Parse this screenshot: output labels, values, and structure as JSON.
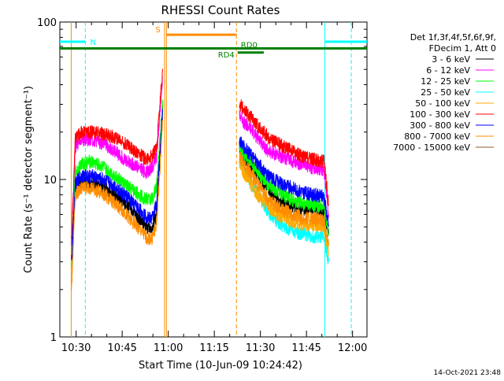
{
  "chart_data": {
    "type": "line",
    "title": "RHESSI Count Rates",
    "xlabel": "Start Time (10-Jun-09 10:24:42)",
    "ylabel": "Count Rate (s⁻¹ detector segment⁻¹)",
    "yscale": "log",
    "ylim": [
      1,
      100
    ],
    "xlim_minutes_since_1024": [
      0,
      100
    ],
    "x_ticks": [
      {
        "label": "10:30",
        "min": 5.3
      },
      {
        "label": "10:45",
        "min": 20.3
      },
      {
        "label": "11:00",
        "min": 35.3
      },
      {
        "label": "11:15",
        "min": 50.3
      },
      {
        "label": "11:30",
        "min": 65.3
      },
      {
        "label": "11:45",
        "min": 80.3
      },
      {
        "label": "12:00",
        "min": 95.3
      }
    ],
    "y_ticks": [
      {
        "label": "1",
        "value": 1
      },
      {
        "label": "10",
        "value": 10
      },
      {
        "label": "100",
        "value": 100
      }
    ],
    "header_lines": [
      "Det 1f,3f,4f,5f,6f,9f,",
      "FDecim 1, Att 0"
    ],
    "grid": false,
    "legend_position": "right",
    "series": [
      {
        "name": "3 - 6 keV",
        "color": "#000000",
        "segments": [
          {
            "x": [
              3.8,
              5,
              7,
              10,
              14,
              18,
              22,
              26,
              28,
              30,
              31.5,
              33.5
            ],
            "y": [
              3.0,
              9.0,
              9.5,
              9.5,
              9.0,
              8.0,
              6.8,
              5.5,
              5.0,
              5.0,
              6.0,
              30
            ]
          },
          {
            "x": [
              58.5,
              60,
              64,
              68,
              72,
              76,
              79,
              82,
              86,
              87.5
            ],
            "y": [
              16,
              14,
              11,
              8.5,
              7.2,
              6.8,
              6.5,
              6.6,
              6.2,
              4.5
            ]
          }
        ]
      },
      {
        "name": "6 - 12 keV",
        "color": "#ff00ff",
        "segments": [
          {
            "x": [
              3.8,
              5,
              7,
              10,
              14,
              18,
              22,
              26,
              28,
              30,
              31.5,
              33.5
            ],
            "y": [
              4.0,
              16,
              18,
              18,
              17,
              15,
              13,
              12,
              11,
              12,
              14,
              45
            ]
          },
          {
            "x": [
              58.5,
              60,
              64,
              68,
              72,
              76,
              79,
              82,
              86,
              87.5
            ],
            "y": [
              26,
              23,
              19,
              15,
              14,
              13,
              12.5,
              12,
              11.5,
              6.0
            ]
          }
        ]
      },
      {
        "name": "12 - 25 keV",
        "color": "#00ff00",
        "segments": [
          {
            "x": [
              3.8,
              5,
              7,
              10,
              14,
              18,
              22,
              26,
              28,
              30,
              31.5,
              33.5
            ],
            "y": [
              3.0,
              11,
              12.5,
              13,
              12,
              10.5,
              9,
              8,
              7.5,
              7.5,
              9,
              32
            ]
          },
          {
            "x": [
              58.5,
              60,
              64,
              68,
              72,
              76,
              79,
              82,
              86,
              87.5
            ],
            "y": [
              16,
              14.5,
              11.5,
              9.2,
              8.2,
              7.3,
              7,
              7,
              6.7,
              4.5
            ]
          }
        ]
      },
      {
        "name": "25 - 50 keV",
        "color": "#00ffff",
        "segments": [
          {
            "x": [
              58.5,
              60,
              64,
              68,
              72,
              76,
              79,
              82,
              86,
              87.5
            ],
            "y": [
              13,
              11.5,
              8.3,
              6.2,
              5.1,
              4.7,
              4.5,
              4.4,
              4.2,
              3.0
            ]
          }
        ]
      },
      {
        "name": "50 - 100 keV",
        "color": "#ffaa00",
        "segments": [
          {
            "x": [
              58.5,
              60,
              64,
              68,
              72,
              76,
              79,
              82,
              86,
              87.5
            ],
            "y": [
              12.5,
              11,
              8.2,
              6.6,
              5.8,
              5.4,
              5.2,
              5.2,
              5.0,
              3.5
            ]
          }
        ]
      },
      {
        "name": "100 - 300 keV",
        "color": "#ff0000",
        "segments": [
          {
            "x": [
              3.8,
              5,
              7,
              10,
              14,
              18,
              22,
              26,
              28,
              30,
              31.5,
              33.5
            ],
            "y": [
              4.0,
              18,
              20,
              20,
              19.5,
              18.5,
              16.5,
              14.5,
              13.5,
              14,
              16,
              50
            ]
          },
          {
            "x": [
              58.5,
              60,
              64,
              68,
              72,
              76,
              79,
              82,
              86,
              87.5
            ],
            "y": [
              30,
              28,
              22.5,
              18.5,
              16.5,
              15,
              14,
              13.5,
              13,
              7.0
            ]
          }
        ]
      },
      {
        "name": "300 - 800 keV",
        "color": "#0000ff",
        "segments": [
          {
            "x": [
              3.8,
              5,
              7,
              10,
              14,
              18,
              22,
              26,
              28,
              30,
              31.5,
              33.5
            ],
            "y": [
              3.0,
              9.5,
              10.5,
              10.5,
              10,
              9,
              7.7,
              6.4,
              5.8,
              5.6,
              7,
              28
            ]
          },
          {
            "x": [
              58.5,
              60,
              64,
              68,
              72,
              76,
              79,
              82,
              86,
              87.5
            ],
            "y": [
              18,
              16,
              13,
              10.5,
              9.4,
              8.8,
              8.3,
              8,
              7.8,
              5.0
            ]
          }
        ]
      },
      {
        "name": "800 - 7000 keV",
        "color": "#ff8c00",
        "segments": [
          {
            "x": [
              3.8,
              5,
              7,
              10,
              14,
              18,
              22,
              26,
              28,
              30,
              31.5,
              33.5
            ],
            "y": [
              2.0,
              8,
              8.8,
              8.8,
              8.2,
              7,
              5.9,
              4.8,
              4.3,
              4.2,
              5.2,
              24
            ]
          },
          {
            "x": [
              58.5,
              60,
              64,
              68,
              72,
              76,
              79,
              82,
              86,
              87.5
            ],
            "y": [
              14,
              12.5,
              9.6,
              7.4,
              6.5,
              6,
              5.7,
              5.6,
              5.5,
              3.8
            ]
          }
        ]
      },
      {
        "name": "7000 - 15000 keV",
        "color": "#8b5a2b",
        "segments": []
      }
    ],
    "vertical_markers": [
      {
        "min": 3.7,
        "color": "#ff8c00",
        "style": "solid"
      },
      {
        "min": 8.3,
        "color": "#00ffff",
        "style": "dashed"
      },
      {
        "min": 34.1,
        "color": "#ff8c00",
        "style": "solid"
      },
      {
        "min": 34.7,
        "color": "#ff8c00",
        "style": "solid"
      },
      {
        "min": 57.5,
        "color": "#ff8c00",
        "style": "dashed"
      },
      {
        "min": 86.3,
        "color": "#00ffff",
        "style": "solid"
      },
      {
        "min": 94.9,
        "color": "#00ffff",
        "style": "dashed"
      }
    ],
    "flag_bars": [
      {
        "label": "N",
        "color": "#00ffff",
        "x_start_min": 0,
        "x_end_min": 8.3,
        "y": 75
      },
      {
        "label": "",
        "color": "#00ffff",
        "x_start_min": 86.3,
        "x_end_min": 100,
        "y": 75
      },
      {
        "label": "S",
        "color": "#ff8c00",
        "x_start_min": 34.7,
        "x_end_min": 57.5,
        "y": 83
      },
      {
        "label": "",
        "color": "#008000",
        "x_start_min": 0,
        "x_end_min": 100,
        "y": 68
      },
      {
        "label": "RD4",
        "color": "#008000",
        "x_start_min": 57.9,
        "x_end_min": 66.4,
        "y": 64
      },
      {
        "label": "RD0",
        "color": "#008000",
        "x_start_min": 57.9,
        "x_end_min": 57.9,
        "y": 68
      }
    ],
    "footer_timestamp": "14-Oct-2021 23:48"
  }
}
